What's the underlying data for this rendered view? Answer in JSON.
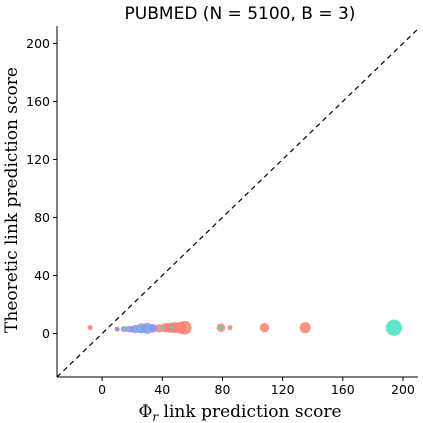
{
  "chart_data": {
    "type": "scatter",
    "title": "PUBMED (N = 5100, B = 3)",
    "xlabel": "Φr link prediction score",
    "xlabel_main": "Φ",
    "xlabel_sub": "r",
    "xlabel_rest": " link prediction score",
    "ylabel": "Theoretic link prediction score",
    "xlim": [
      -30,
      210
    ],
    "ylim": [
      -30,
      212
    ],
    "x_ticks": [
      0,
      40,
      80,
      120,
      160,
      200
    ],
    "y_ticks": [
      0,
      40,
      80,
      120,
      160,
      200
    ],
    "reference_line": "y = x (dashed)",
    "grid": false,
    "series": [
      {
        "color": "#fa8072",
        "points": [
          {
            "x": -8,
            "y": 4,
            "s": 3
          },
          {
            "x": 10,
            "y": 3,
            "s": 3
          },
          {
            "x": 15,
            "y": 3,
            "s": 3.5
          },
          {
            "x": 20,
            "y": 3,
            "s": 3.5
          },
          {
            "x": 25,
            "y": 3,
            "s": 4
          },
          {
            "x": 28,
            "y": 3.5,
            "s": 4.5
          },
          {
            "x": 33,
            "y": 3.5,
            "s": 5
          },
          {
            "x": 38,
            "y": 3.5,
            "s": 5
          },
          {
            "x": 42,
            "y": 4,
            "s": 5.5
          },
          {
            "x": 45,
            "y": 4,
            "s": 6
          },
          {
            "x": 48,
            "y": 4,
            "s": 6.5
          },
          {
            "x": 52,
            "y": 4,
            "s": 7
          },
          {
            "x": 55,
            "y": 4,
            "s": 8
          },
          {
            "x": 79,
            "y": 4,
            "s": 5
          },
          {
            "x": 85,
            "y": 4,
            "s": 3
          },
          {
            "x": 108,
            "y": 4,
            "s": 5.5
          },
          {
            "x": 135,
            "y": 4,
            "s": 6.5
          }
        ]
      },
      {
        "color": "#8f94f5",
        "points": [
          {
            "x": 10,
            "y": 3,
            "s": 2.5
          },
          {
            "x": 14,
            "y": 3,
            "s": 3
          },
          {
            "x": 18,
            "y": 3,
            "s": 4
          },
          {
            "x": 22,
            "y": 3,
            "s": 5
          },
          {
            "x": 26,
            "y": 3.5,
            "s": 6
          },
          {
            "x": 30,
            "y": 3.5,
            "s": 6.5
          },
          {
            "x": 34,
            "y": 3.5,
            "s": 5
          }
        ]
      },
      {
        "color": "#40e0c0",
        "points": [
          {
            "x": 15,
            "y": 3,
            "s": 2
          },
          {
            "x": 25,
            "y": 3,
            "s": 2.5
          },
          {
            "x": 30,
            "y": 3.5,
            "s": 2
          },
          {
            "x": 40,
            "y": 4,
            "s": 2
          },
          {
            "x": 46,
            "y": 4,
            "s": 2
          },
          {
            "x": 79,
            "y": 4,
            "s": 2.5
          },
          {
            "x": 194,
            "y": 4,
            "s": 9.5
          }
        ]
      }
    ]
  }
}
